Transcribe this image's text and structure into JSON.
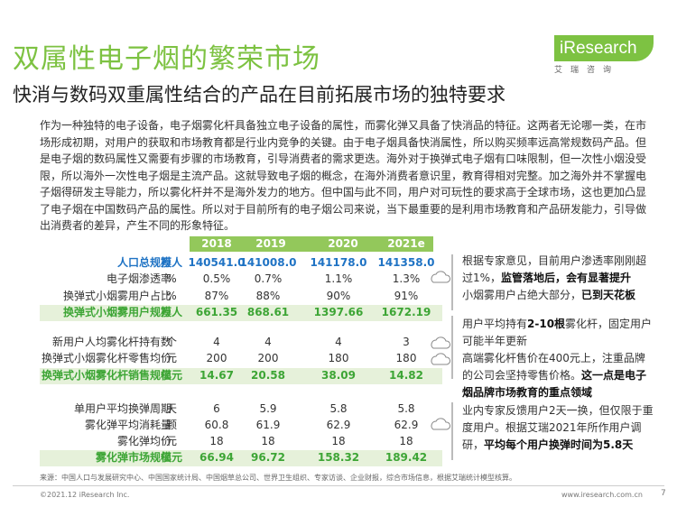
{
  "title": "双属性电子烟的繁荣市场",
  "subtitle": "快消与数码双重属性结合的产品在目前拓展市场的独特要求",
  "logo": {
    "brand": "iResearch",
    "sub": "艾瑞咨询"
  },
  "intro": "作为一种独特的电子设备，电子烟雾化杆具备独立电子设备的属性，而雾化弹又具备了快消品的特征。这两者无论哪一类，在市场形成初期，对用户的获取和市场教育都是行业内竞争的关键。由于电子烟具备快消属性，所以购买频率远高常规数码产品。但是电子烟的数码属性又需要有步骤的市场教育，引导消费者的需求更迭。海外对于换弹式电子烟有口味限制，但一次性小烟没受限，所以海外一次性电子烟是主流产品。这就导致电子烟的概念，在海外消费者意识里，教育得相对完整。加之海外并不掌握电子烟得研发主导能力，所以雾化杆并不是海外发力的地方。但中国与此不同，用户对可玩性的要求高于全球市场，这也更加凸显了电子烟在中国数码产品的属性。所以对于目前所有的电子烟公司来说，当下最重要的是利用市场教育和产品研发能力，引导做出消费者的差异，产生不同的形象特征。",
  "table": {
    "years": [
      "2018",
      "2019",
      "2020",
      "2021e"
    ],
    "rows": [
      {
        "label": "人口总规模",
        "unit": "万人",
        "values": [
          "140541.0",
          "141008.0",
          "141178.0",
          "141358.0"
        ],
        "style": "blue"
      },
      {
        "label": "电子烟渗透率",
        "unit": "%",
        "values": [
          "0.5%",
          "0.7%",
          "1.1%",
          "1.3%"
        ],
        "style": "normal"
      },
      {
        "label": "换弹式小烟雾用户占比",
        "unit": "%",
        "values": [
          "87%",
          "88%",
          "90%",
          "91%"
        ],
        "style": "normal"
      },
      {
        "label": "换弹式小烟雾用户规模",
        "unit": "万人",
        "values": [
          "661.35",
          "868.61",
          "1397.66",
          "1672.19"
        ],
        "style": "green"
      },
      {
        "label": "新用户人均雾化杆持有数",
        "unit": "个",
        "values": [
          "4",
          "4",
          "4",
          "3"
        ],
        "style": "normal"
      },
      {
        "label": "换弹式小烟雾化杆零售均价",
        "unit": "元",
        "values": [
          "200",
          "200",
          "180",
          "180"
        ],
        "style": "normal"
      },
      {
        "label": "换弹式小烟雾化杆销售规模",
        "unit": "亿元",
        "values": [
          "14.67",
          "20.58",
          "38.09",
          "14.82"
        ],
        "style": "green"
      },
      {
        "label": "单用户平均换弹周期",
        "unit": "天",
        "values": [
          "6",
          "5.9",
          "5.8",
          "5.8"
        ],
        "style": "normal"
      },
      {
        "label": "雾化弹平均消耗量",
        "unit": "颗",
        "values": [
          "60.8",
          "61.9",
          "62.9",
          "62.9"
        ],
        "style": "normal"
      },
      {
        "label": "雾化弹均价",
        "unit": "元",
        "values": [
          "18",
          "18",
          "18",
          "18"
        ],
        "style": "normal"
      },
      {
        "label": "雾化弹市场规模",
        "unit": "亿元",
        "values": [
          "66.94",
          "96.72",
          "158.32",
          "189.42"
        ],
        "style": "green"
      }
    ]
  },
  "notes": [
    {
      "pre": "根据专家意见，目前用户渗透率刚刚超过1%，",
      "bold": "监管落地后，会有显著提升",
      "mid": "小烟雾用户占绝大部分，",
      "bold2": "已到天花板"
    },
    {
      "pre": "用户平均持有",
      "bold": "2-10根",
      "mid": "雾化杆，固定用户可能半年更新"
    },
    {
      "pre": "高端雾化杆售价在400元上，注重品牌的公司会坚持零售价格。",
      "bold": "这一点是电子烟品牌市场教育的重点领域"
    },
    {
      "pre": "业内专家反馈用户2天一换，但仅限于重度用户。根据艾瑞2021年所作用户调研，",
      "bold": "平均每个用户换弹时间为5.8天"
    }
  ],
  "source": "来源：中国人口与发展研究中心、中国国家统计局、中国烟草总公司、世界卫生组织、专家访谈、企业财报，综合市场信息，根据艾瑞统计模型核算。",
  "footer": {
    "copyright": "©2021.12 iResearch Inc.",
    "website": "www.iresearch.com.cn",
    "page": "7"
  }
}
